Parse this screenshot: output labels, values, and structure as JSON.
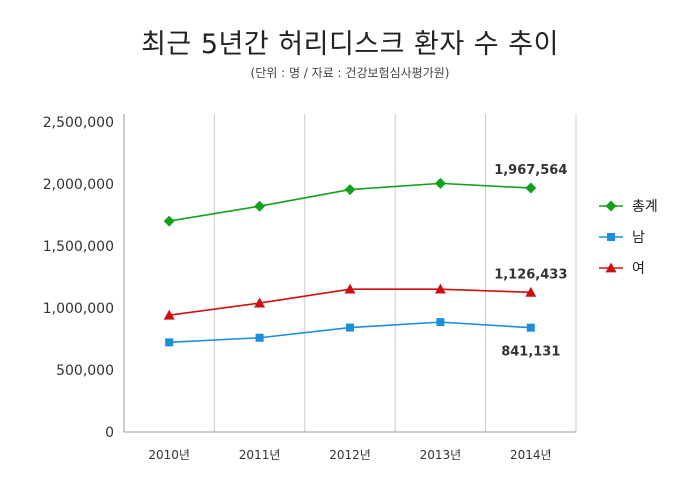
{
  "title": "최근 5년간 허리디스크 환자 수 추이",
  "subtitle": "(단위 : 명 / 자료 : 건강보험심사평가원)",
  "colors": {
    "total": "#12a11e",
    "male": "#1b8fd9",
    "female": "#cc1010",
    "grid": "#cccccc",
    "axis": "#999999"
  },
  "chart_data": {
    "type": "line",
    "title": "최근 5년간 허리디스크 환자 수 추이",
    "subtitle": "(단위 : 명 / 자료 : 건강보험심사평가원)",
    "categories": [
      "2010년",
      "2011년",
      "2012년",
      "2013년",
      "2014년"
    ],
    "ylim": [
      0,
      2500000
    ],
    "yticks": [
      0,
      500000,
      1000000,
      1500000,
      2000000,
      2500000
    ],
    "ytick_labels": [
      "0",
      "500,000",
      "1,000,000",
      "1,500,000",
      "2,000,000",
      "2,500,000"
    ],
    "grid": "vertical",
    "legend_position": "right",
    "series": [
      {
        "name": "총계",
        "key": "total",
        "marker": "diamond",
        "values": [
          1701000,
          1821000,
          1955000,
          2005000,
          1967564
        ]
      },
      {
        "name": "남",
        "key": "male",
        "marker": "square",
        "values": [
          723000,
          760000,
          842000,
          886000,
          841131
        ]
      },
      {
        "name": "여",
        "key": "female",
        "marker": "triangle",
        "values": [
          942000,
          1040000,
          1152000,
          1152000,
          1126433
        ]
      }
    ],
    "annotations": [
      {
        "series": "total",
        "index": 4,
        "text": "1,967,564",
        "position": "above"
      },
      {
        "series": "female",
        "index": 4,
        "text": "1,126,433",
        "position": "above"
      },
      {
        "series": "male",
        "index": 4,
        "text": "841,131",
        "position": "below"
      }
    ]
  }
}
